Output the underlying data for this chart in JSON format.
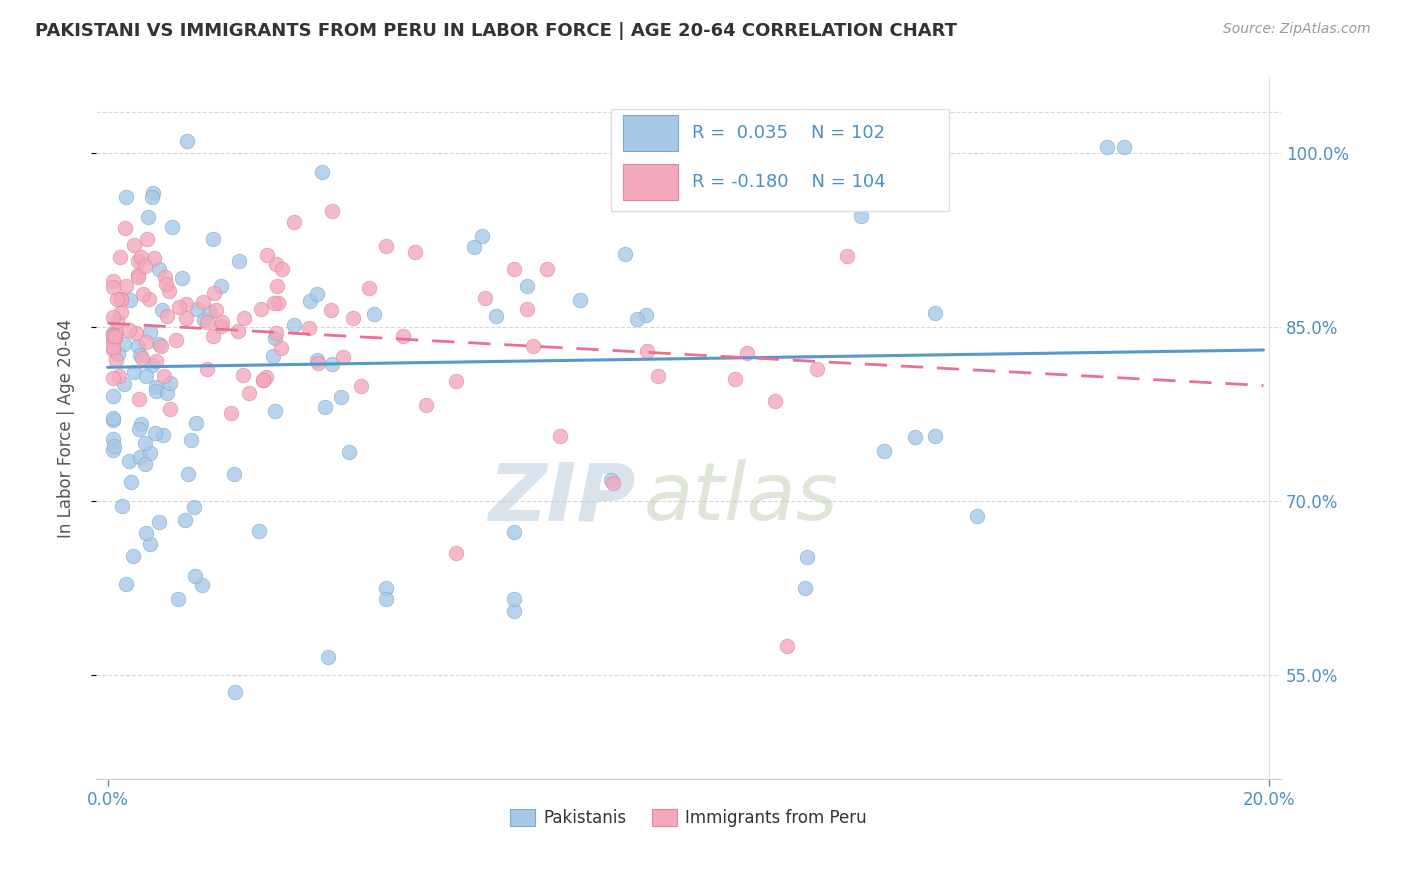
{
  "title": "PAKISTANI VS IMMIGRANTS FROM PERU IN LABOR FORCE | AGE 20-64 CORRELATION CHART",
  "source": "Source: ZipAtlas.com",
  "ylabel": "In Labor Force | Age 20-64",
  "xmin": 0.0,
  "xmax": 0.2,
  "ymin": 0.46,
  "ymax": 1.065,
  "ytick_positions": [
    0.55,
    0.7,
    0.85,
    1.0
  ],
  "ytick_labels": [
    "55.0%",
    "70.0%",
    "85.0%",
    "100.0%"
  ],
  "blue_scatter_color": "#a8c8e8",
  "blue_edge_color": "#7aaac8",
  "pink_scatter_color": "#f4a8bc",
  "pink_edge_color": "#d888a0",
  "blue_line_color": "#5599cc",
  "pink_line_color": "#e87090",
  "grid_color": "#cccccc",
  "axis_tick_color": "#4a90c4",
  "ylabel_color": "#555555",
  "title_color": "#333333",
  "source_color": "#999999",
  "legend_r1": "R =  0.035",
  "legend_n1": "N = 102",
  "legend_r2": "R = -0.180",
  "legend_n2": "N = 104",
  "legend_text_color": "#4a90c4",
  "bottom_legend_labels": [
    "Pakistanis",
    "Immigrants from Peru"
  ],
  "watermark_zip_color": "#c8d8e8",
  "watermark_atlas_color": "#c8d4b8"
}
